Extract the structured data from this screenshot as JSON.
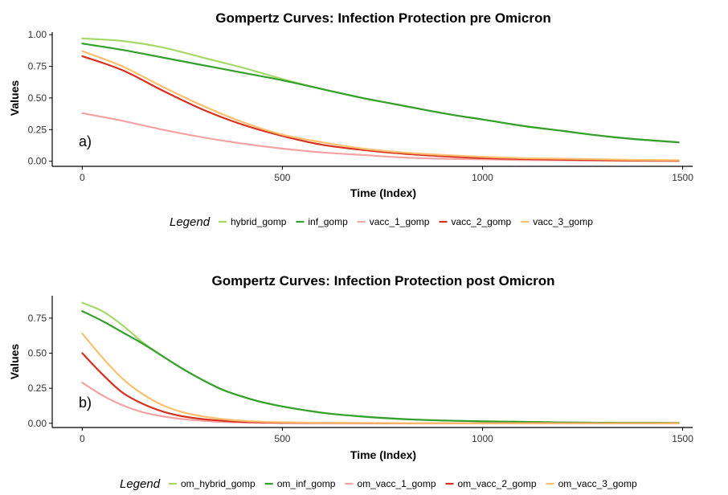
{
  "chart_data": [
    {
      "type": "line",
      "title": "Gompertz Curves: Infection Protection pre Omicron",
      "xlabel": "Time (Index)",
      "ylabel": "Values",
      "panel_label": "a)",
      "xlim": [
        -75,
        1525
      ],
      "ylim": [
        -0.04,
        1.02
      ],
      "xticks": [
        0,
        500,
        1000,
        1500
      ],
      "yticks": [
        0.0,
        0.25,
        0.5,
        0.75,
        1.0
      ],
      "ytick_labels": [
        "0.00",
        "0.25",
        "0.50",
        "0.75",
        "1.00"
      ],
      "legend_title": "Legend",
      "legend_position": "bottom",
      "x": [
        0,
        100,
        200,
        300,
        400,
        500,
        600,
        700,
        800,
        900,
        1000,
        1100,
        1200,
        1300,
        1400,
        1490
      ],
      "series": [
        {
          "name": "hybrid_gomp",
          "color": "#a6d96a",
          "values": [
            0.97,
            0.95,
            0.9,
            0.82,
            0.74,
            0.65,
            0.57,
            0.5,
            0.44,
            0.38,
            0.33,
            0.28,
            0.24,
            0.2,
            0.17,
            0.15
          ]
        },
        {
          "name": "inf_gomp",
          "color": "#33a02c",
          "values": [
            0.93,
            0.88,
            0.82,
            0.76,
            0.7,
            0.64,
            0.57,
            0.5,
            0.44,
            0.38,
            0.33,
            0.28,
            0.24,
            0.2,
            0.17,
            0.15
          ]
        },
        {
          "name": "vacc_1_gomp",
          "color": "#f4a3a3",
          "values": [
            0.38,
            0.32,
            0.25,
            0.19,
            0.14,
            0.1,
            0.07,
            0.05,
            0.03,
            0.02,
            0.015,
            0.01,
            0.008,
            0.006,
            0.004,
            0.003
          ]
        },
        {
          "name": "vacc_2_gomp",
          "color": "#d7301f",
          "values": [
            0.83,
            0.72,
            0.56,
            0.41,
            0.29,
            0.2,
            0.13,
            0.09,
            0.06,
            0.04,
            0.025,
            0.018,
            0.012,
            0.008,
            0.005,
            0.004
          ]
        },
        {
          "name": "vacc_3_gomp",
          "color": "#fdbf6f",
          "values": [
            0.87,
            0.75,
            0.59,
            0.44,
            0.31,
            0.21,
            0.15,
            0.1,
            0.07,
            0.05,
            0.035,
            0.025,
            0.02,
            0.015,
            0.01,
            0.008
          ]
        }
      ]
    },
    {
      "type": "line",
      "title": "Gompertz Curves: Infection Protection post Omicron",
      "xlabel": "Time (Index)",
      "ylabel": "Values",
      "panel_label": "b)",
      "xlim": [
        -75,
        1525
      ],
      "ylim": [
        -0.03,
        0.91
      ],
      "xticks": [
        0,
        500,
        1000,
        1500
      ],
      "yticks": [
        0.0,
        0.25,
        0.5,
        0.75
      ],
      "ytick_labels": [
        "0.00",
        "0.25",
        "0.50",
        "0.75"
      ],
      "legend_title": "Legend",
      "legend_position": "bottom",
      "x": [
        0,
        50,
        100,
        150,
        200,
        250,
        300,
        350,
        400,
        450,
        500,
        600,
        700,
        800,
        900,
        1000,
        1100,
        1200,
        1300,
        1400,
        1490
      ],
      "series": [
        {
          "name": "om_hybrid_gomp",
          "color": "#a6d96a",
          "values": [
            0.86,
            0.8,
            0.7,
            0.58,
            0.48,
            0.39,
            0.31,
            0.24,
            0.19,
            0.15,
            0.12,
            0.075,
            0.048,
            0.03,
            0.02,
            0.014,
            0.01,
            0.006,
            0.004,
            0.003,
            0.002
          ]
        },
        {
          "name": "om_inf_gomp",
          "color": "#33a02c",
          "values": [
            0.8,
            0.73,
            0.65,
            0.57,
            0.48,
            0.39,
            0.31,
            0.24,
            0.19,
            0.15,
            0.12,
            0.075,
            0.048,
            0.03,
            0.02,
            0.014,
            0.01,
            0.006,
            0.004,
            0.003,
            0.002
          ]
        },
        {
          "name": "om_vacc_1_gomp",
          "color": "#f4a3a3",
          "values": [
            0.29,
            0.2,
            0.13,
            0.08,
            0.05,
            0.03,
            0.018,
            0.01,
            0.006,
            0.004,
            0.002,
            0.001,
            0.0,
            0.0,
            0.0,
            0.0,
            0.0,
            0.0,
            0.0,
            0.0,
            0.0
          ]
        },
        {
          "name": "om_vacc_2_gomp",
          "color": "#d7301f",
          "values": [
            0.5,
            0.35,
            0.22,
            0.14,
            0.085,
            0.05,
            0.03,
            0.018,
            0.01,
            0.006,
            0.004,
            0.002,
            0.001,
            0.0,
            0.0,
            0.0,
            0.0,
            0.0,
            0.0,
            0.0,
            0.0
          ]
        },
        {
          "name": "om_vacc_3_gomp",
          "color": "#fdbf6f",
          "values": [
            0.64,
            0.47,
            0.32,
            0.21,
            0.13,
            0.08,
            0.05,
            0.03,
            0.018,
            0.011,
            0.007,
            0.004,
            0.002,
            0.001,
            0.0,
            0.0,
            0.0,
            0.0,
            0.0,
            0.0,
            0.0
          ]
        }
      ]
    }
  ]
}
